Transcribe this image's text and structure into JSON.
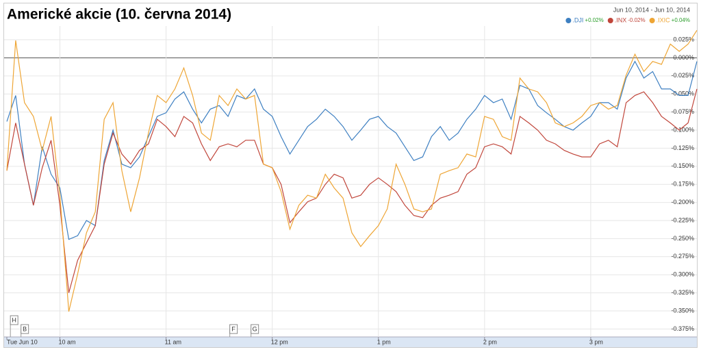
{
  "chart_data": {
    "type": "line",
    "title": "Americké akcie (10. června 2014)",
    "date_range": "Jun 10, 2014 - Jun 10, 2014",
    "x": [
      0,
      5,
      10,
      15,
      20,
      25,
      30,
      35,
      40,
      45,
      50,
      55,
      60,
      65,
      70,
      75,
      80,
      85,
      90,
      95,
      100,
      105,
      110,
      115,
      120,
      125,
      130,
      135,
      140,
      145,
      150,
      155,
      160,
      165,
      170,
      175,
      180,
      185,
      190,
      195,
      200,
      205,
      210,
      215,
      220,
      225,
      230,
      235,
      240,
      245,
      250,
      255,
      260,
      265,
      270,
      275,
      280,
      285,
      290,
      295,
      300,
      305,
      310,
      315,
      320,
      325,
      330,
      335,
      340,
      345,
      350,
      355,
      360,
      365,
      370,
      375,
      380,
      385,
      390
    ],
    "xlim": [
      0,
      390
    ],
    "xticks": [
      {
        "value": 0,
        "label": "Tue Jun 10"
      },
      {
        "value": 30,
        "label": "10 am"
      },
      {
        "value": 90,
        "label": "11 am"
      },
      {
        "value": 150,
        "label": "12 pm"
      },
      {
        "value": 210,
        "label": "1 pm"
      },
      {
        "value": 270,
        "label": "2 pm"
      },
      {
        "value": 330,
        "label": "3 pm"
      }
    ],
    "ylim": [
      -0.386,
      0.044
    ],
    "yticks": [
      {
        "value": 0.025,
        "label": "0.025%"
      },
      {
        "value": 0,
        "label": "0.000%"
      },
      {
        "value": -0.025,
        "label": "-0.025%"
      },
      {
        "value": -0.05,
        "label": "-0.050%"
      },
      {
        "value": -0.075,
        "label": "-0.075%"
      },
      {
        "value": -0.1,
        "label": "-0.100%"
      },
      {
        "value": -0.125,
        "label": "-0.125%"
      },
      {
        "value": -0.15,
        "label": "-0.150%"
      },
      {
        "value": -0.175,
        "label": "-0.175%"
      },
      {
        "value": -0.2,
        "label": "-0.200%"
      },
      {
        "value": -0.225,
        "label": "-0.225%"
      },
      {
        "value": -0.25,
        "label": "-0.250%"
      },
      {
        "value": -0.275,
        "label": "-0.275%"
      },
      {
        "value": -0.3,
        "label": "-0.300%"
      },
      {
        "value": -0.325,
        "label": "-0.325%"
      },
      {
        "value": -0.35,
        "label": "-0.350%"
      },
      {
        "value": -0.375,
        "label": "-0.375%"
      }
    ],
    "grid": true,
    "legend": "top-right",
    "series": [
      {
        "name": ".DJI",
        "color": "#3d7fc1",
        "change": "+0.02%",
        "change_color": "#2a9d2a",
        "values": [
          -0.088,
          -0.052,
          -0.147,
          -0.204,
          -0.123,
          -0.161,
          -0.18,
          -0.251,
          -0.246,
          -0.225,
          -0.232,
          -0.142,
          -0.1,
          -0.147,
          -0.152,
          -0.137,
          -0.109,
          -0.081,
          -0.076,
          -0.057,
          -0.047,
          -0.071,
          -0.09,
          -0.071,
          -0.066,
          -0.081,
          -0.052,
          -0.057,
          -0.043,
          -0.071,
          -0.081,
          -0.109,
          -0.133,
          -0.114,
          -0.095,
          -0.085,
          -0.071,
          -0.081,
          -0.095,
          -0.114,
          -0.1,
          -0.085,
          -0.081,
          -0.095,
          -0.104,
          -0.123,
          -0.142,
          -0.137,
          -0.109,
          -0.095,
          -0.114,
          -0.104,
          -0.085,
          -0.071,
          -0.052,
          -0.062,
          -0.057,
          -0.085,
          -0.038,
          -0.043,
          -0.066,
          -0.076,
          -0.085,
          -0.095,
          -0.1,
          -0.09,
          -0.081,
          -0.062,
          -0.062,
          -0.071,
          -0.028,
          -0.005,
          -0.028,
          -0.019,
          -0.043,
          -0.043,
          -0.052,
          -0.052,
          -0.005
        ]
      },
      {
        "name": ".INX",
        "color": "#c0453a",
        "change": "-0.02%",
        "change_color": "#c0453a",
        "values": [
          -0.156,
          -0.09,
          -0.147,
          -0.204,
          -0.152,
          -0.114,
          -0.204,
          -0.325,
          -0.28,
          -0.256,
          -0.232,
          -0.147,
          -0.104,
          -0.133,
          -0.147,
          -0.128,
          -0.119,
          -0.085,
          -0.095,
          -0.109,
          -0.081,
          -0.09,
          -0.119,
          -0.142,
          -0.123,
          -0.119,
          -0.123,
          -0.114,
          -0.114,
          -0.147,
          -0.152,
          -0.175,
          -0.228,
          -0.213,
          -0.199,
          -0.194,
          -0.175,
          -0.161,
          -0.166,
          -0.194,
          -0.19,
          -0.175,
          -0.166,
          -0.175,
          -0.185,
          -0.204,
          -0.218,
          -0.221,
          -0.204,
          -0.194,
          -0.19,
          -0.185,
          -0.161,
          -0.152,
          -0.123,
          -0.119,
          -0.123,
          -0.133,
          -0.081,
          -0.09,
          -0.1,
          -0.114,
          -0.119,
          -0.128,
          -0.133,
          -0.137,
          -0.137,
          -0.119,
          -0.114,
          -0.123,
          -0.062,
          -0.052,
          -0.047,
          -0.062,
          -0.081,
          -0.09,
          -0.1,
          -0.09,
          -0.043
        ]
      },
      {
        "name": ".IXIC",
        "color": "#eea534",
        "change": "+0.04%",
        "change_color": "#2a9d2a",
        "values": [
          -0.156,
          0.024,
          -0.062,
          -0.081,
          -0.128,
          -0.081,
          -0.19,
          -0.351,
          -0.299,
          -0.242,
          -0.213,
          -0.085,
          -0.062,
          -0.156,
          -0.213,
          -0.166,
          -0.104,
          -0.052,
          -0.062,
          -0.043,
          -0.014,
          -0.052,
          -0.104,
          -0.114,
          -0.052,
          -0.066,
          -0.043,
          -0.057,
          -0.052,
          -0.147,
          -0.152,
          -0.185,
          -0.237,
          -0.204,
          -0.19,
          -0.194,
          -0.161,
          -0.18,
          -0.194,
          -0.242,
          -0.261,
          -0.246,
          -0.232,
          -0.209,
          -0.147,
          -0.175,
          -0.209,
          -0.213,
          -0.209,
          -0.161,
          -0.156,
          -0.152,
          -0.133,
          -0.137,
          -0.081,
          -0.085,
          -0.109,
          -0.114,
          -0.028,
          -0.043,
          -0.047,
          -0.062,
          -0.09,
          -0.095,
          -0.09,
          -0.081,
          -0.066,
          -0.062,
          -0.071,
          -0.066,
          -0.024,
          0.005,
          -0.019,
          -0.005,
          -0.009,
          0.019,
          0.009,
          0.019,
          0.038
        ]
      }
    ],
    "flags": [
      {
        "label": "H",
        "x": 2
      },
      {
        "label": "B",
        "x": 8
      },
      {
        "label": "F",
        "x": 126
      },
      {
        "label": "G",
        "x": 138
      }
    ]
  }
}
